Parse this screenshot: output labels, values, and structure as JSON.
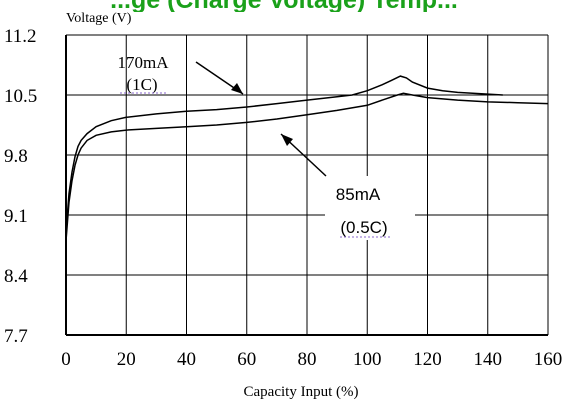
{
  "chart_data": {
    "type": "line",
    "title": "...ge (Charge Voltage) Temp...",
    "ylabel": "Voltage (V)",
    "xlabel": "Capacity Input (%)",
    "xlim": [
      0,
      160
    ],
    "ylim": [
      7.7,
      11.2
    ],
    "xticks": [
      "0",
      "20",
      "40",
      "60",
      "80",
      "100",
      "120",
      "140",
      "160"
    ],
    "yticks": [
      "11.2",
      "10.5",
      "9.8",
      "9.1",
      "8.4",
      "7.7"
    ],
    "grid": true,
    "series": [
      {
        "name": "170mA (1C)",
        "label_line1": "170mA",
        "label_line2": "(1C)",
        "x": [
          0,
          1,
          2,
          3,
          4,
          5,
          7,
          10,
          15,
          20,
          30,
          40,
          50,
          60,
          70,
          80,
          90,
          95,
          100,
          105,
          108,
          111,
          113,
          115,
          120,
          125,
          130,
          135,
          140,
          145
        ],
        "y": [
          8.9,
          9.35,
          9.6,
          9.78,
          9.9,
          9.97,
          10.05,
          10.13,
          10.2,
          10.24,
          10.28,
          10.31,
          10.33,
          10.36,
          10.4,
          10.44,
          10.48,
          10.5,
          10.55,
          10.62,
          10.67,
          10.72,
          10.7,
          10.65,
          10.58,
          10.55,
          10.53,
          10.52,
          10.51,
          10.5
        ]
      },
      {
        "name": "85mA (0.5C)",
        "label_line1": "85mA",
        "label_line2": "(0.5C)",
        "x": [
          0,
          1,
          2,
          3,
          4,
          5,
          7,
          10,
          15,
          20,
          30,
          40,
          50,
          60,
          70,
          80,
          90,
          100,
          105,
          110,
          112,
          115,
          120,
          130,
          140,
          150,
          160
        ],
        "y": [
          8.8,
          9.25,
          9.5,
          9.68,
          9.8,
          9.88,
          9.97,
          10.03,
          10.07,
          10.09,
          10.11,
          10.13,
          10.15,
          10.18,
          10.22,
          10.27,
          10.32,
          10.38,
          10.44,
          10.5,
          10.52,
          10.5,
          10.47,
          10.44,
          10.42,
          10.41,
          10.4
        ]
      }
    ]
  }
}
